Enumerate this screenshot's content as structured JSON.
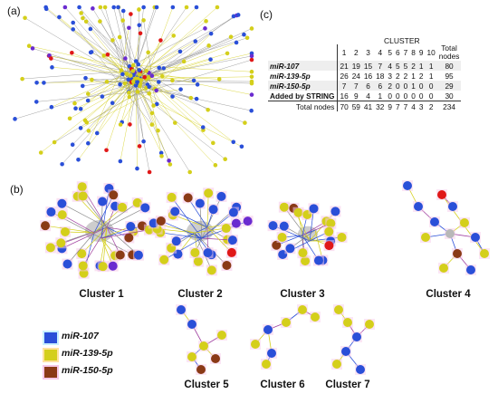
{
  "panels": {
    "a": "(a)",
    "b": "(b)",
    "c": "(c)"
  },
  "colors": {
    "mir107": "#2a4fd8",
    "mir139": "#d4cf1b",
    "mir150": "#8a3a16",
    "string": "#6a2bd0",
    "edge_gray": "#8a8a8a",
    "red": "#e01818",
    "halo": "#f6c8e8"
  },
  "legend": [
    {
      "label": "miR-107",
      "color": "#2a4fd8"
    },
    {
      "label": "miR-139-5p",
      "color": "#d4cf1b"
    },
    {
      "label": "miR-150-5p",
      "color": "#8a3a16"
    }
  ],
  "table": {
    "title": "CLUSTER",
    "headers": [
      "1",
      "2",
      "3",
      "4",
      "5",
      "6",
      "7",
      "8",
      "9",
      "10",
      "Total nodes"
    ],
    "header_total_line1": "Total",
    "header_total_line2": "nodes",
    "rows": [
      {
        "label": "miR-107",
        "values": [
          "21",
          "19",
          "15",
          "7",
          "4",
          "5",
          "5",
          "2",
          "1",
          "1",
          "80"
        ]
      },
      {
        "label": "miR-139-5p",
        "values": [
          "26",
          "24",
          "16",
          "18",
          "3",
          "2",
          "2",
          "1",
          "2",
          "1",
          "95"
        ]
      },
      {
        "label": "miR-150-5p",
        "values": [
          "7",
          "7",
          "6",
          "6",
          "2",
          "0",
          "0",
          "1",
          "0",
          "0",
          "29"
        ]
      },
      {
        "label": "Added by STRING",
        "values": [
          "16",
          "9",
          "4",
          "1",
          "0",
          "0",
          "0",
          "0",
          "0",
          "0",
          "30"
        ]
      }
    ],
    "total_row": {
      "label": "Total nodes",
      "values": [
        "70",
        "59",
        "41",
        "32",
        "9",
        "7",
        "7",
        "4",
        "3",
        "2",
        "234"
      ]
    }
  },
  "clusters": [
    {
      "label": "Cluster 1"
    },
    {
      "label": "Cluster 2"
    },
    {
      "label": "Cluster 3"
    },
    {
      "label": "Cluster 4"
    },
    {
      "label": "Cluster 5"
    },
    {
      "label": "Cluster 6"
    },
    {
      "label": "Cluster 7"
    }
  ]
}
